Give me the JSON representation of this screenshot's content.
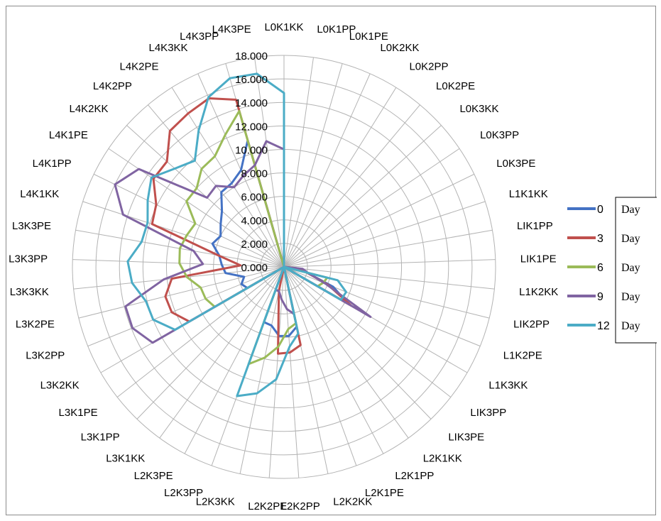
{
  "chart_data": {
    "type": "radar",
    "title": "",
    "rlim": [
      0,
      18
    ],
    "r_ticks": [
      "0.000",
      "2.000",
      "4.000",
      "6.000",
      "8.000",
      "10.000",
      "12.000",
      "14.000",
      "16.000",
      "18.000"
    ],
    "grid": true,
    "legend_position": "right",
    "categories": [
      "L0K1KK",
      "L0K1PP",
      "L0K1PE",
      "L0K2KK",
      "L0K2PP",
      "L0K2PE",
      "L0K3KK",
      "L0K3PP",
      "L0K3PE",
      "L1K1KK",
      "LIK1PP",
      "LIK1PE",
      "L1K2KK",
      "LIK2PP",
      "L1K2PE",
      "L1K3KK",
      "LIK3PP",
      "LIK3PE",
      "L2K1KK",
      "L2K1PP",
      "L2K1PE",
      "L2K2KK",
      "L2K2PP",
      "L2K2PE",
      "L2K3KK",
      "L2K3PP",
      "L2K3PE",
      "L3K1KK",
      "L3K1PP",
      "L3K1PE",
      "L3K2KK",
      "L3K2PP",
      "L3K2PE",
      "L3K3KK",
      "L3K3PP",
      "L3K3PE",
      "L4K1KK",
      "L4K1PP",
      "L4K1PE",
      "L4K2KK",
      "L4K2PP",
      "L4K2PE",
      "L4K3KK",
      "L4K3PP",
      "L4K3PE"
    ],
    "series": [
      {
        "name": "0",
        "color": "#4472C4",
        "values": [
          1.5,
          0,
          0,
          0,
          0,
          0,
          0,
          0,
          0,
          0,
          0,
          0,
          1.2,
          2.0,
          4.5,
          6.3,
          0,
          0,
          0,
          0,
          0,
          5.2,
          5.9,
          5.9,
          5.1,
          5.0,
          0,
          0,
          0,
          0,
          3.6,
          3.9,
          3.5,
          5.0,
          5.3,
          5.6,
          6.4,
          6.0,
          6.5,
          7.1,
          8.3,
          8.4,
          9.0,
          11.2,
          0
        ]
      },
      {
        "name": "3",
        "color": "#C0504D",
        "values": [
          9.2,
          0,
          0,
          0,
          0,
          0,
          0,
          0,
          0,
          0,
          0,
          0,
          0.8,
          2.0,
          4.0,
          6.6,
          0,
          0,
          0,
          0,
          0,
          6.8,
          7.3,
          7.4,
          2.1,
          0,
          0,
          0,
          0,
          0,
          9.3,
          10.3,
          10.4,
          9.6,
          3.7,
          5.7,
          11.8,
          12.1,
          13.4,
          13.4,
          15.1,
          15.4,
          15.7,
          14.8,
          0
        ]
      },
      {
        "name": "6",
        "color": "#9BBB59",
        "values": [
          13.0,
          0,
          0,
          0,
          0,
          0,
          0,
          0,
          0,
          0,
          0,
          0,
          0,
          3.8,
          3.6,
          3.3,
          0,
          0,
          0,
          0,
          0,
          4.9,
          5.3,
          6.8,
          7.9,
          8.8,
          0,
          0,
          0,
          0,
          6.8,
          7.2,
          7.3,
          8.3,
          8.9,
          9.0,
          8.7,
          8.4,
          10.0,
          10.0,
          10.9,
          11.1,
          12.3,
          13.8,
          0
        ]
      },
      {
        "name": "9",
        "color": "#8064A2",
        "values": [
          10.0,
          0,
          0,
          0,
          0,
          0,
          0,
          0,
          0,
          0,
          0,
          0,
          1.6,
          2.1,
          3.8,
          8.5,
          0,
          0,
          0,
          0,
          0,
          4.1,
          3.6,
          2.8,
          2.1,
          2.1,
          0,
          0,
          0,
          0,
          12.9,
          13.9,
          13.9,
          10.3,
          6.9,
          7.8,
          14.4,
          16.0,
          14.9,
          8.8,
          9.0,
          8.0,
          8.5,
          9.0,
          10.8
        ]
      },
      {
        "name": "12",
        "color": "#4BACC6",
        "values": [
          14.8,
          0,
          0,
          0,
          0,
          0,
          0,
          0,
          0,
          0,
          0,
          0,
          0,
          4.7,
          5.7,
          5.6,
          0,
          0,
          0,
          0,
          0,
          5.8,
          6.8,
          9.6,
          11.0,
          11.7,
          0,
          0,
          0,
          0,
          10.7,
          12.0,
          12.1,
          13.0,
          13.3,
          12.3,
          12.2,
          12.9,
          13.6,
          12.5,
          11.8,
          13.7,
          15.8,
          16.7,
          16.6
        ]
      }
    ]
  },
  "legend": {
    "items": [
      {
        "num": "0",
        "label": "Day"
      },
      {
        "num": "3",
        "label": "Day"
      },
      {
        "num": "6",
        "label": "Day"
      },
      {
        "num": "9",
        "label": "Day"
      },
      {
        "num": "12",
        "label": "Day"
      }
    ]
  }
}
